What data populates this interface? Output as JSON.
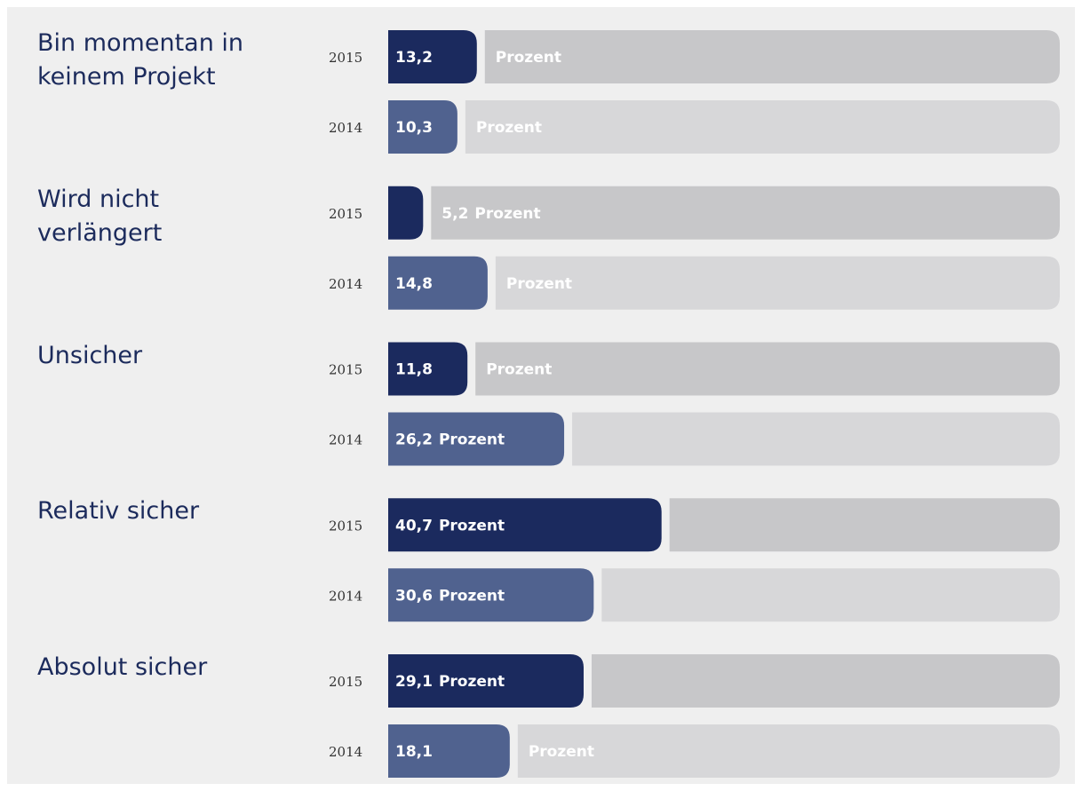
{
  "chart_data": {
    "type": "bar",
    "categories": [
      "Bin momentan in keinem Projekt",
      "Wird nicht verlängert",
      "Unsicher",
      "Relativ sicher",
      "Absolut sicher"
    ],
    "unit": "Prozent",
    "series": [
      {
        "name": "2015",
        "color": "#1b2a5e",
        "track_color": "#c7c7c9",
        "values": [
          13.2,
          5.2,
          11.8,
          40.7,
          29.1
        ],
        "value_labels": [
          "13,2",
          "5,2",
          "11,8",
          "40,7",
          "29,1"
        ]
      },
      {
        "name": "2014",
        "color": "#50628f",
        "track_color": "#d7d7d9",
        "values": [
          10.3,
          14.8,
          26.2,
          30.6,
          18.1
        ],
        "value_labels": [
          "10,3",
          "14,8",
          "26,2",
          "30,6",
          "18,1"
        ]
      }
    ],
    "xlim": [
      0,
      100
    ]
  }
}
